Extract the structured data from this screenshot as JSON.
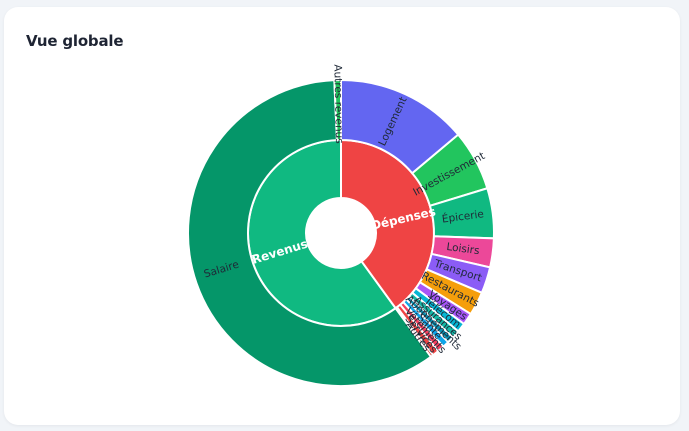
{
  "card": {
    "title": "Vue globale"
  },
  "colors": {
    "background": "#f1f4f8",
    "card": "#ffffff",
    "revenus_inner": "#10b981",
    "salaire": "#059669",
    "autres_revenus": "#22c55e",
    "depenses_inner": "#ef4444"
  },
  "chart_data": {
    "type": "sunburst",
    "title": "Vue globale",
    "center": [
      341,
      233
    ],
    "radii": {
      "hole": 35,
      "inner": 93,
      "outer": 153
    },
    "levels": [
      {
        "name": "Revenus",
        "color": "#10b981",
        "share_pct": 60,
        "start_deg": 144,
        "end_deg": 360,
        "children": [
          {
            "name": "Salaire",
            "color": "#059669",
            "start_deg": 144,
            "end_deg": 357.5
          },
          {
            "name": "Autres revenus",
            "color": "#22c55e",
            "start_deg": 357.5,
            "end_deg": 360
          }
        ]
      },
      {
        "name": "Dépenses",
        "color": "#ef4444",
        "share_pct": 40,
        "start_deg": 0,
        "end_deg": 144,
        "children": [
          {
            "name": "Logement",
            "color": "#6366f1",
            "start_deg": 0,
            "end_deg": 50
          },
          {
            "name": "Investissement",
            "color": "#22c55e",
            "start_deg": 50,
            "end_deg": 73
          },
          {
            "name": "Épicerie",
            "color": "#10b981",
            "start_deg": 73,
            "end_deg": 92
          },
          {
            "name": "Loisirs",
            "color": "#ec4899",
            "start_deg": 92,
            "end_deg": 103
          },
          {
            "name": "Transport",
            "color": "#8b5cf6",
            "start_deg": 103,
            "end_deg": 113
          },
          {
            "name": "Restaurants",
            "color": "#f59e0b",
            "start_deg": 113,
            "end_deg": 122
          },
          {
            "name": "Voyages",
            "color": "#a855f7",
            "start_deg": 122,
            "end_deg": 126.5
          },
          {
            "name": "Télécom",
            "color": "#06b6d4",
            "start_deg": 126.5,
            "end_deg": 130
          },
          {
            "name": "Assurances",
            "color": "#14b8a6",
            "start_deg": 130,
            "end_deg": 133
          },
          {
            "name": "Abonnements",
            "color": "#0891b2",
            "start_deg": 133,
            "end_deg": 135.5
          },
          {
            "name": "Santé",
            "color": "#0ea5e9",
            "start_deg": 135.5,
            "end_deg": 138
          },
          {
            "name": "Vêtements",
            "color": "#f43f5e",
            "start_deg": 138,
            "end_deg": 140.5
          },
          {
            "name": "Services",
            "color": "#ef4444",
            "start_deg": 140.5,
            "end_deg": 143
          },
          {
            "name": "Autres",
            "color": "#dc2626",
            "start_deg": 143,
            "end_deg": 144
          }
        ]
      }
    ]
  }
}
